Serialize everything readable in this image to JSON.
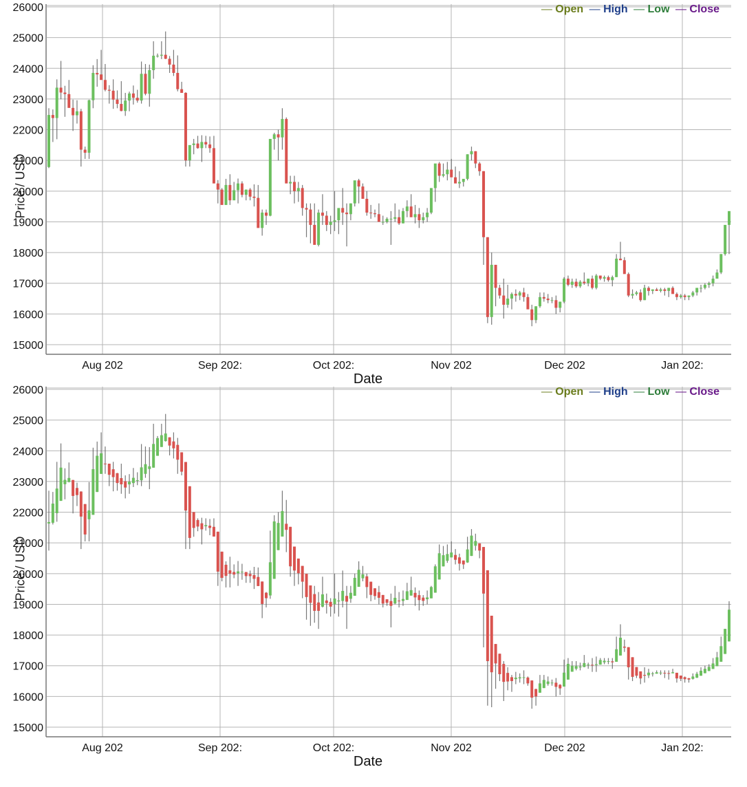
{
  "chart_data": [
    {
      "type": "candlestick",
      "variant": "standard",
      "title": "",
      "xlabel": "Date",
      "ylabel": "Price / USD",
      "ylim": [
        14650,
        26200
      ],
      "yticks": [
        15000,
        16000,
        17000,
        18000,
        19000,
        20000,
        21000,
        22000,
        23000,
        24000,
        25000,
        26000
      ],
      "xticks": [
        "Aug 202",
        "Sep 202:",
        "Oct 202:",
        "Nov 202",
        "Dec 202",
        "Jan 202:"
      ],
      "grid": true,
      "legend": [
        {
          "label": "Open",
          "color": "#6b7d1e"
        },
        {
          "label": "High",
          "color": "#1f3f8a"
        },
        {
          "label": "Low",
          "color": "#2e7d3a"
        },
        {
          "label": "Close",
          "color": "#6a1b8a"
        }
      ],
      "legend_position": "top-right",
      "up_color": "#6cbf5f",
      "down_color": "#d9534f",
      "start_date": "2022-07-17",
      "ohlc": [
        [
          20785,
          22700,
          20750,
          22480
        ],
        [
          22480,
          22660,
          21600,
          22380
        ],
        [
          22380,
          23640,
          21690,
          23370
        ],
        [
          23370,
          24240,
          22990,
          23210
        ],
        [
          23210,
          23430,
          22420,
          23160
        ],
        [
          23160,
          23620,
          22970,
          22710
        ],
        [
          22710,
          22980,
          21960,
          22470
        ],
        [
          22470,
          22960,
          22200,
          22600
        ],
        [
          22600,
          22680,
          20800,
          21350
        ],
        [
          21350,
          21450,
          21050,
          21250
        ],
        [
          21250,
          22980,
          21050,
          22960
        ],
        [
          22960,
          24100,
          22700,
          23850
        ],
        [
          23850,
          24300,
          23400,
          23800
        ],
        [
          23800,
          24600,
          23650,
          23620
        ],
        [
          23620,
          24140,
          23250,
          23300
        ],
        [
          23300,
          23450,
          22850,
          23270
        ],
        [
          23270,
          23640,
          22680,
          22980
        ],
        [
          22980,
          23280,
          22700,
          22840
        ],
        [
          22840,
          23580,
          22600,
          22610
        ],
        [
          22610,
          23200,
          22450,
          22950
        ],
        [
          22950,
          23240,
          22600,
          23180
        ],
        [
          23180,
          23440,
          22820,
          23040
        ],
        [
          23040,
          23300,
          22880,
          22950
        ],
        [
          22950,
          24220,
          22850,
          23820
        ],
        [
          23820,
          24140,
          23120,
          23170
        ],
        [
          23170,
          24120,
          22750,
          23940
        ],
        [
          23940,
          24880,
          23660,
          24410
        ],
        [
          24410,
          24480,
          24350,
          24410
        ],
        [
          24410,
          24880,
          24300,
          24440
        ],
        [
          24440,
          25200,
          24300,
          24310
        ],
        [
          24310,
          24400,
          23850,
          24120
        ],
        [
          24120,
          24600,
          23750,
          23850
        ],
        [
          23850,
          24420,
          23250,
          23320
        ],
        [
          23320,
          23560,
          23200,
          23200
        ],
        [
          23200,
          23220,
          20800,
          21000
        ],
        [
          21000,
          21350,
          20800,
          21500
        ],
        [
          21500,
          21700,
          21200,
          21550
        ],
        [
          21550,
          21800,
          21380,
          21400
        ],
        [
          21400,
          21820,
          20950,
          21600
        ],
        [
          21600,
          21800,
          21400,
          21520
        ],
        [
          21520,
          21780,
          21250,
          21400
        ],
        [
          21400,
          21800,
          21380,
          20250
        ],
        [
          20250,
          20360,
          19600,
          20050
        ],
        [
          20050,
          20100,
          19750,
          19550
        ],
        [
          19550,
          20400,
          19550,
          20200
        ],
        [
          20200,
          20550,
          19550,
          19700
        ],
        [
          19700,
          20300,
          19850,
          20030
        ],
        [
          20030,
          20410,
          19600,
          20250
        ],
        [
          20250,
          20320,
          19800,
          19880
        ],
        [
          19880,
          20050,
          19700,
          20050
        ],
        [
          20050,
          20100,
          19700,
          19820
        ],
        [
          19820,
          20220,
          19500,
          19780
        ],
        [
          19780,
          20200,
          19600,
          18800
        ],
        [
          18800,
          19400,
          18550,
          19300
        ],
        [
          19300,
          19400,
          18900,
          19200
        ],
        [
          19200,
          21400,
          19180,
          21700
        ],
        [
          21700,
          21900,
          21350,
          21850
        ],
        [
          21850,
          22000,
          21000,
          21750
        ],
        [
          21750,
          22700,
          21350,
          22350
        ],
        [
          22350,
          22400,
          20700,
          20250
        ],
        [
          20250,
          20500,
          19900,
          20300
        ],
        [
          20300,
          20500,
          19600,
          20000
        ],
        [
          20000,
          20300,
          19650,
          20100
        ],
        [
          20100,
          20200,
          19200,
          19450
        ],
        [
          19450,
          19600,
          18500,
          19400
        ],
        [
          19400,
          19600,
          18300,
          18900
        ],
        [
          18900,
          19600,
          18400,
          18250
        ],
        [
          18250,
          19400,
          18200,
          19300
        ],
        [
          19300,
          19900,
          18900,
          19200
        ],
        [
          19200,
          19350,
          18700,
          18900
        ],
        [
          18900,
          19200,
          18600,
          19000
        ],
        [
          19000,
          20000,
          18700,
          19050
        ],
        [
          19050,
          19400,
          18600,
          19450
        ],
        [
          19450,
          20100,
          18900,
          19300
        ],
        [
          19300,
          19600,
          18200,
          19250
        ],
        [
          19250,
          19600,
          19050,
          19600
        ],
        [
          19600,
          20000,
          19500,
          20350
        ],
        [
          20350,
          20400,
          19600,
          20150
        ],
        [
          20150,
          20250,
          19750,
          19750
        ],
        [
          19750,
          20000,
          19200,
          19300
        ],
        [
          19300,
          19550,
          19100,
          19280
        ],
        [
          19280,
          19400,
          19150,
          19250
        ],
        [
          19250,
          19600,
          19000,
          19000
        ],
        [
          19000,
          19200,
          18900,
          19000
        ],
        [
          19000,
          19150,
          18950,
          19100
        ],
        [
          19100,
          19350,
          18250,
          19100
        ],
        [
          19100,
          19600,
          19000,
          19150
        ],
        [
          19150,
          19400,
          18900,
          18950
        ],
        [
          18950,
          19450,
          18950,
          19350
        ],
        [
          19350,
          19700,
          19150,
          19500
        ],
        [
          19500,
          19900,
          19300,
          19150
        ],
        [
          19150,
          19550,
          18950,
          19250
        ],
        [
          19250,
          19450,
          18800,
          19050
        ],
        [
          19050,
          19300,
          18950,
          19150
        ],
        [
          19150,
          19450,
          19000,
          19300
        ],
        [
          19300,
          19600,
          19250,
          20100
        ],
        [
          20100,
          20300,
          19650,
          20900
        ],
        [
          20900,
          20950,
          20300,
          20500
        ],
        [
          20500,
          20900,
          20450,
          20550
        ],
        [
          20550,
          20950,
          20350,
          20700
        ],
        [
          20700,
          21050,
          20550,
          20450
        ],
        [
          20450,
          20800,
          20300,
          20250
        ],
        [
          20250,
          20650,
          20100,
          20300
        ],
        [
          20300,
          20350,
          20150,
          20400
        ],
        [
          20400,
          21200,
          20350,
          21200
        ],
        [
          21200,
          21450,
          21000,
          21300
        ],
        [
          21300,
          21300,
          20750,
          20900
        ],
        [
          20900,
          20950,
          20500,
          20650
        ],
        [
          20650,
          20650,
          17600,
          18500
        ],
        [
          18500,
          18500,
          15700,
          15900
        ],
        [
          15900,
          18000,
          15650,
          17600
        ],
        [
          17600,
          17600,
          16250,
          16850
        ],
        [
          16850,
          16950,
          16500,
          16600
        ],
        [
          16600,
          17150,
          15850,
          16300
        ],
        [
          16300,
          16950,
          16200,
          16500
        ],
        [
          16500,
          16700,
          16150,
          16650
        ],
        [
          16650,
          16800,
          16400,
          16600
        ],
        [
          16600,
          16750,
          16450,
          16700
        ],
        [
          16700,
          16850,
          16400,
          16550
        ],
        [
          16550,
          16650,
          16350,
          16150
        ],
        [
          16150,
          16300,
          15600,
          15800
        ],
        [
          15800,
          16250,
          15700,
          16250
        ],
        [
          16250,
          16700,
          16200,
          16550
        ],
        [
          16550,
          16700,
          16400,
          16500
        ],
        [
          16500,
          16650,
          16350,
          16450
        ],
        [
          16450,
          16550,
          16350,
          16450
        ],
        [
          16450,
          16600,
          16000,
          16200
        ],
        [
          16200,
          16400,
          16050,
          16400
        ],
        [
          16400,
          17200,
          16350,
          17150
        ],
        [
          17150,
          17250,
          16900,
          16950
        ],
        [
          16950,
          17150,
          16850,
          17050
        ],
        [
          17050,
          17150,
          16850,
          16900
        ],
        [
          16900,
          17100,
          16850,
          17050
        ],
        [
          17050,
          17350,
          16950,
          17000
        ],
        [
          17000,
          17100,
          16900,
          17150
        ],
        [
          17150,
          17250,
          16800,
          16850
        ],
        [
          16850,
          17300,
          16800,
          17250
        ],
        [
          17250,
          17250,
          17100,
          17150
        ],
        [
          17150,
          17250,
          17050,
          17200
        ],
        [
          17200,
          17250,
          17050,
          17100
        ],
        [
          17100,
          17250,
          16900,
          17200
        ],
        [
          17200,
          17950,
          17200,
          17800
        ],
        [
          17800,
          18350,
          17750,
          17750
        ],
        [
          17750,
          17850,
          17450,
          17300
        ],
        [
          17300,
          17350,
          16550,
          16600
        ],
        [
          16600,
          16800,
          16500,
          16650
        ],
        [
          16650,
          16750,
          16600,
          16700
        ],
        [
          16700,
          16800,
          16400,
          16450
        ],
        [
          16450,
          16950,
          16450,
          16850
        ],
        [
          16850,
          16900,
          16600,
          16750
        ],
        [
          16750,
          16800,
          16650,
          16800
        ],
        [
          16800,
          16850,
          16750,
          16750
        ],
        [
          16750,
          16850,
          16700,
          16800
        ],
        [
          16800,
          16850,
          16600,
          16750
        ],
        [
          16750,
          16850,
          16550,
          16850
        ],
        [
          16850,
          16900,
          16750,
          16650
        ],
        [
          16650,
          16700,
          16450,
          16550
        ],
        [
          16550,
          16650,
          16500,
          16600
        ],
        [
          16600,
          16650,
          16450,
          16550
        ],
        [
          16550,
          16600,
          16450,
          16600
        ],
        [
          16600,
          16750,
          16550,
          16700
        ],
        [
          16700,
          16800,
          16600,
          16850
        ],
        [
          16850,
          16950,
          16700,
          16850
        ],
        [
          16850,
          17000,
          16800,
          16950
        ],
        [
          16950,
          17050,
          16850,
          17000
        ],
        [
          17000,
          17250,
          16900,
          17150
        ],
        [
          17150,
          17450,
          17150,
          17350
        ],
        [
          17350,
          17950,
          17300,
          17950
        ],
        [
          17950,
          18050,
          17900,
          18900
        ],
        [
          18900,
          19100,
          17950,
          19350
        ]
      ]
    },
    {
      "type": "candlestick",
      "variant": "heikin-ashi",
      "title": "",
      "xlabel": "Date",
      "ylabel": "Price / USD",
      "ylim": [
        14650,
        26200
      ],
      "yticks": [
        15000,
        16000,
        17000,
        18000,
        19000,
        20000,
        21000,
        22000,
        23000,
        24000,
        25000,
        26000
      ],
      "xticks": [
        "Aug 202",
        "Sep 202:",
        "Oct 202:",
        "Nov 202",
        "Dec 202",
        "Jan 202:"
      ],
      "grid": true,
      "legend": [
        {
          "label": "Open",
          "color": "#6b7d1e"
        },
        {
          "label": "High",
          "color": "#1f3f8a"
        },
        {
          "label": "Low",
          "color": "#2e7d3a"
        },
        {
          "label": "Close",
          "color": "#6a1b8a"
        }
      ],
      "legend_position": "top-right",
      "source": "same ohlc as chart 1"
    }
  ],
  "charts": [
    {
      "xlabel": "Date",
      "ylabel": "Price / USD",
      "legend": {
        "open": "Open",
        "high": "High",
        "low": "Low",
        "close": "Close",
        "dash": "—"
      }
    },
    {
      "xlabel": "Date",
      "ylabel": "Price / USD",
      "legend": {
        "open": "Open",
        "high": "High",
        "low": "Low",
        "close": "Close",
        "dash": "—"
      }
    }
  ]
}
